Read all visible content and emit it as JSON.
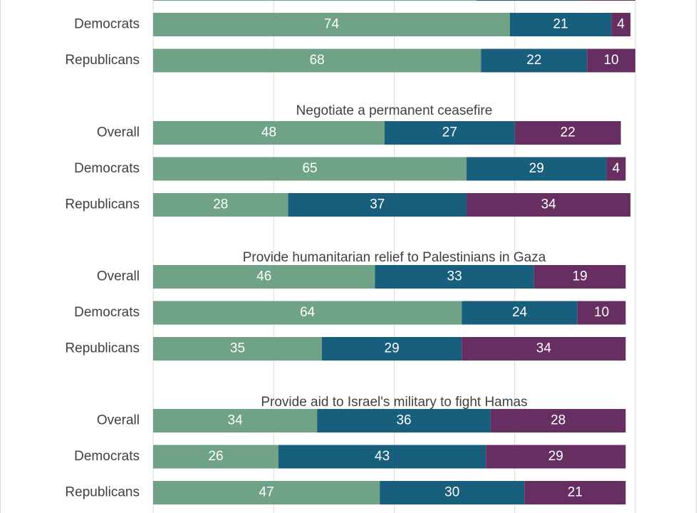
{
  "chart_data": {
    "type": "bar",
    "orientation": "horizontal",
    "stacked": true,
    "grid": true,
    "xlim": [
      0,
      100
    ],
    "colors": [
      "#6fa287",
      "#185e7d",
      "#662e61"
    ],
    "row_labels": [
      "Overall",
      "Democrats",
      "Republicans"
    ],
    "groups": [
      {
        "title": "",
        "rows": [
          {
            "label": "Democrats",
            "values": [
              74,
              21,
              4
            ]
          },
          {
            "label": "Republicans",
            "values": [
              68,
              22,
              10
            ]
          }
        ]
      },
      {
        "title": "Negotiate a permanent ceasefire",
        "rows": [
          {
            "label": "Overall",
            "values": [
              48,
              27,
              22
            ]
          },
          {
            "label": "Democrats",
            "values": [
              65,
              29,
              4
            ]
          },
          {
            "label": "Republicans",
            "values": [
              28,
              37,
              34
            ]
          }
        ]
      },
      {
        "title": "Provide humanitarian relief to Palestinians in Gaza",
        "rows": [
          {
            "label": "Overall",
            "values": [
              46,
              33,
              19
            ]
          },
          {
            "label": "Democrats",
            "values": [
              64,
              24,
              10
            ]
          },
          {
            "label": "Republicans",
            "values": [
              35,
              29,
              34
            ]
          }
        ]
      },
      {
        "title": "Provide aid to Israel's military to fight Hamas",
        "rows": [
          {
            "label": "Overall",
            "values": [
              34,
              36,
              28
            ]
          },
          {
            "label": "Democrats",
            "values": [
              26,
              43,
              29
            ]
          },
          {
            "label": "Republicans",
            "values": [
              47,
              30,
              21
            ]
          }
        ]
      }
    ]
  }
}
